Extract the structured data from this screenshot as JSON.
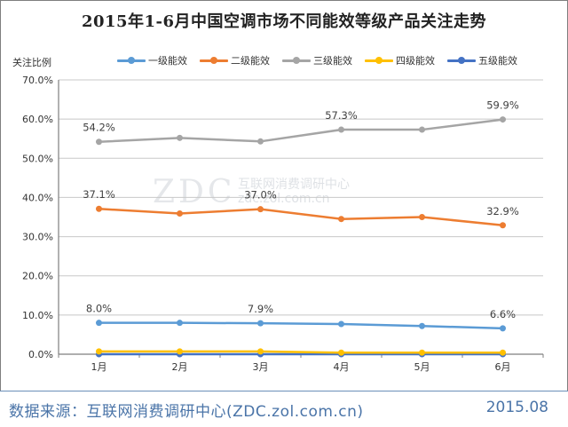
{
  "chart_data": {
    "type": "line",
    "title": "2015年1-6月中国空调市场不同能效等级产品关注走势",
    "ylabel": "关注比例",
    "xlabel": "",
    "categories": [
      "1月",
      "2月",
      "3月",
      "4月",
      "5月",
      "6月"
    ],
    "ylim": [
      0,
      70
    ],
    "yticks": [
      "0.0%",
      "10.0%",
      "20.0%",
      "30.0%",
      "40.0%",
      "50.0%",
      "60.0%",
      "70.0%"
    ],
    "grid": true,
    "legend_position": "top",
    "series": [
      {
        "name": "一级能效",
        "color": "#5b9bd5",
        "values": [
          8.0,
          8.0,
          7.9,
          7.7,
          7.2,
          6.6
        ],
        "labels": [
          {
            "index": 0,
            "text": "8.0%"
          },
          {
            "index": 2,
            "text": "7.9%"
          },
          {
            "index": 5,
            "text": "6.6%"
          }
        ]
      },
      {
        "name": "二级能效",
        "color": "#ed7d31",
        "values": [
          37.1,
          35.9,
          37.0,
          34.5,
          35.0,
          32.9
        ],
        "labels": [
          {
            "index": 0,
            "text": "37.1%"
          },
          {
            "index": 2,
            "text": "37.0%"
          },
          {
            "index": 5,
            "text": "32.9%"
          }
        ]
      },
      {
        "name": "三级能效",
        "color": "#a5a5a5",
        "values": [
          54.2,
          55.2,
          54.3,
          57.3,
          57.3,
          59.9
        ],
        "labels": [
          {
            "index": 0,
            "text": "54.2%"
          },
          {
            "index": 3,
            "text": "57.3%"
          },
          {
            "index": 5,
            "text": "59.9%"
          }
        ]
      },
      {
        "name": "四级能效",
        "color": "#ffc000",
        "values": [
          0.7,
          0.7,
          0.7,
          0.4,
          0.4,
          0.4
        ],
        "labels": []
      },
      {
        "name": "五级能效",
        "color": "#4472c4",
        "values": [
          0.0,
          0.0,
          0.0,
          0.0,
          0.0,
          0.0
        ],
        "labels": []
      }
    ]
  },
  "watermark": {
    "main": "ZDC",
    "sub1": "互联网消费调研中心",
    "sub2": "zdc.zol.com.cn"
  },
  "footer": {
    "source": "数据来源：互联网消费调研中心(ZDC.zol.com.cn)",
    "date": "2015.08"
  }
}
